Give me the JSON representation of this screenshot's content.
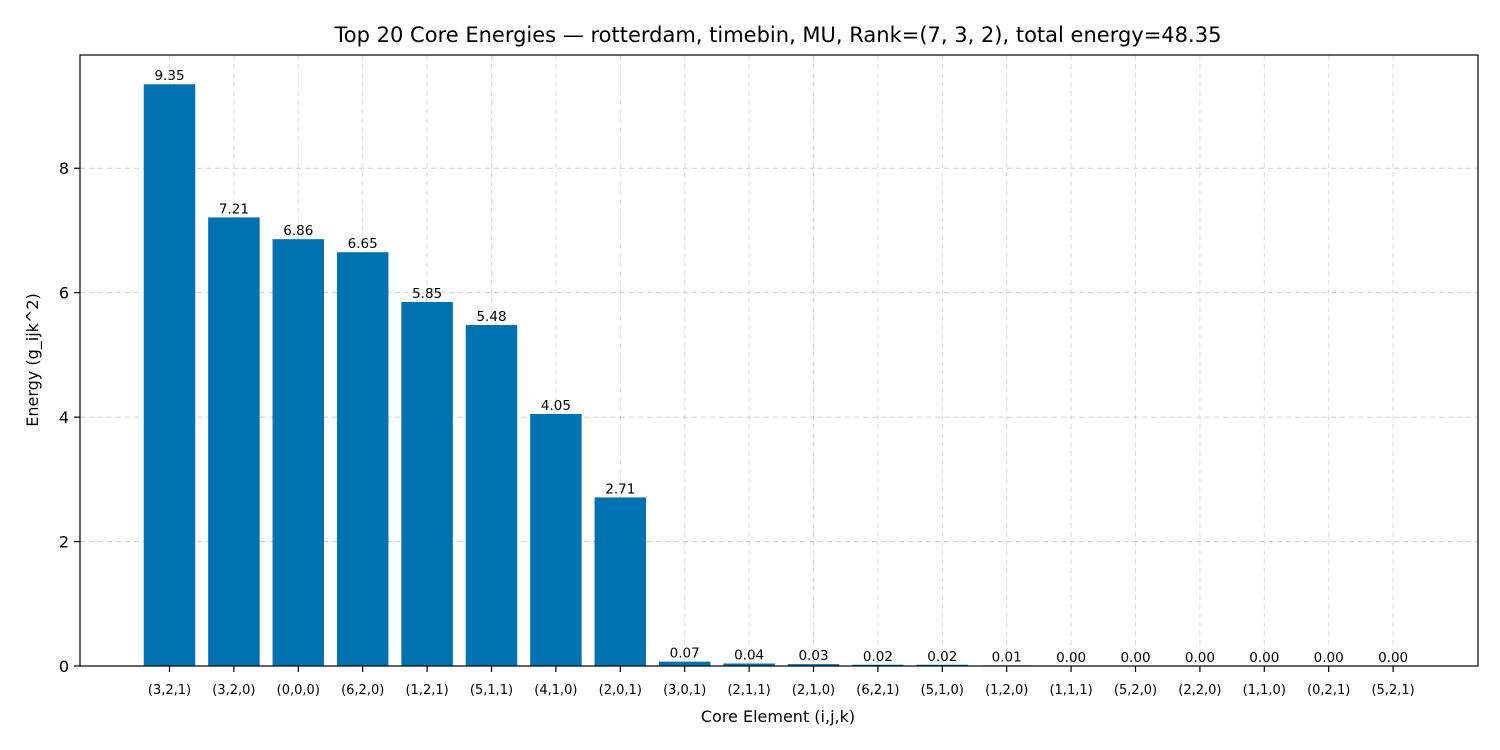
{
  "chart_data": {
    "type": "bar",
    "title": "Top 20 Core Energies — rotterdam, timebin, MU, Rank=(7, 3, 2), total energy=48.35",
    "xlabel": "Core Element (i,j,k)",
    "ylabel": "Energy (g_ijk^2)",
    "ylim": [
      0,
      9.82
    ],
    "yticks": [
      0,
      2,
      4,
      6,
      8
    ],
    "grid": true,
    "categories": [
      "(3,2,1)",
      "(3,2,0)",
      "(0,0,0)",
      "(6,2,0)",
      "(1,2,1)",
      "(5,1,1)",
      "(4,1,0)",
      "(2,0,1)",
      "(3,0,1)",
      "(2,1,1)",
      "(2,1,0)",
      "(6,2,1)",
      "(5,1,0)",
      "(1,2,0)",
      "(1,1,1)",
      "(5,2,0)",
      "(2,2,0)",
      "(1,1,0)",
      "(0,2,1)",
      "(5,2,1)"
    ],
    "values": [
      9.35,
      7.21,
      6.86,
      6.65,
      5.85,
      5.48,
      4.05,
      2.71,
      0.07,
      0.04,
      0.03,
      0.02,
      0.02,
      0.01,
      0.0,
      0.0,
      0.0,
      0.0,
      0.0,
      0.0
    ],
    "value_labels": [
      "9.35",
      "7.21",
      "6.86",
      "6.65",
      "5.85",
      "5.48",
      "4.05",
      "2.71",
      "0.07",
      "0.04",
      "0.03",
      "0.02",
      "0.02",
      "0.01",
      "0.00",
      "0.00",
      "0.00",
      "0.00",
      "0.00",
      "0.00"
    ],
    "bar_color": "#0072b2"
  }
}
